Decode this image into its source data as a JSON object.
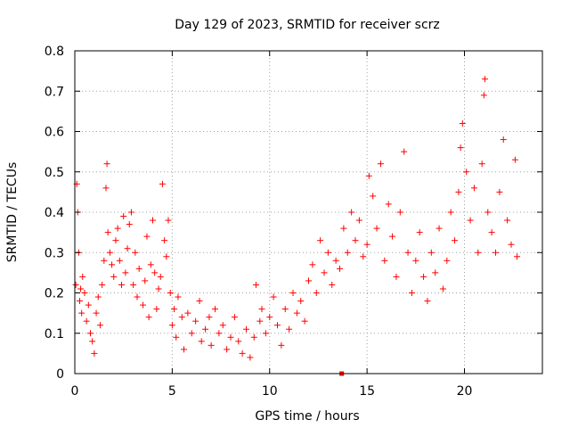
{
  "chart_data": {
    "type": "scatter",
    "title": "Day 129 of 2023, SRMTID for receiver scrz",
    "xlabel": "GPS time / hours",
    "ylabel": "SRMTID / TECUs",
    "xlim": [
      0,
      24
    ],
    "ylim": [
      0,
      0.8
    ],
    "xticks": [
      0,
      5,
      10,
      15,
      20
    ],
    "yticks": [
      0,
      0.1,
      0.2,
      0.3,
      0.4,
      0.5,
      0.6,
      0.7,
      0.8
    ],
    "x_tick_labels": [
      "0",
      "5",
      "10",
      "15",
      "20"
    ],
    "y_tick_labels": [
      "0",
      "0.1",
      "0.2",
      "0.3",
      "0.4",
      "0.5",
      "0.6",
      "0.7",
      "0.8"
    ],
    "grid": true,
    "marker": "+",
    "color": "#ff0000",
    "series": [
      {
        "name": "SRMTID",
        "points": [
          [
            0.05,
            0.22
          ],
          [
            0.1,
            0.47
          ],
          [
            0.15,
            0.4
          ],
          [
            0.2,
            0.3
          ],
          [
            0.25,
            0.18
          ],
          [
            0.3,
            0.21
          ],
          [
            0.35,
            0.15
          ],
          [
            0.4,
            0.24
          ],
          [
            0.5,
            0.2
          ],
          [
            0.6,
            0.13
          ],
          [
            0.7,
            0.17
          ],
          [
            0.8,
            0.1
          ],
          [
            0.9,
            0.08
          ],
          [
            1.0,
            0.05
          ],
          [
            1.1,
            0.15
          ],
          [
            1.2,
            0.19
          ],
          [
            1.3,
            0.12
          ],
          [
            1.4,
            0.22
          ],
          [
            1.5,
            0.28
          ],
          [
            1.6,
            0.46
          ],
          [
            1.65,
            0.52
          ],
          [
            1.7,
            0.35
          ],
          [
            1.8,
            0.3
          ],
          [
            1.9,
            0.27
          ],
          [
            2.0,
            0.24
          ],
          [
            2.1,
            0.33
          ],
          [
            2.2,
            0.36
          ],
          [
            2.3,
            0.28
          ],
          [
            2.4,
            0.22
          ],
          [
            2.5,
            0.39
          ],
          [
            2.6,
            0.25
          ],
          [
            2.7,
            0.31
          ],
          [
            2.8,
            0.37
          ],
          [
            2.9,
            0.4
          ],
          [
            3.0,
            0.22
          ],
          [
            3.1,
            0.3
          ],
          [
            3.2,
            0.19
          ],
          [
            3.3,
            0.26
          ],
          [
            3.5,
            0.17
          ],
          [
            3.6,
            0.23
          ],
          [
            3.7,
            0.34
          ],
          [
            3.8,
            0.14
          ],
          [
            3.9,
            0.27
          ],
          [
            4.0,
            0.38
          ],
          [
            4.1,
            0.25
          ],
          [
            4.2,
            0.16
          ],
          [
            4.3,
            0.21
          ],
          [
            4.4,
            0.24
          ],
          [
            4.5,
            0.47
          ],
          [
            4.6,
            0.33
          ],
          [
            4.7,
            0.29
          ],
          [
            4.8,
            0.38
          ],
          [
            4.9,
            0.2
          ],
          [
            5.0,
            0.12
          ],
          [
            5.1,
            0.16
          ],
          [
            5.2,
            0.09
          ],
          [
            5.3,
            0.19
          ],
          [
            5.5,
            0.14
          ],
          [
            5.6,
            0.06
          ],
          [
            5.8,
            0.15
          ],
          [
            6.0,
            0.1
          ],
          [
            6.2,
            0.13
          ],
          [
            6.4,
            0.18
          ],
          [
            6.5,
            0.08
          ],
          [
            6.7,
            0.11
          ],
          [
            6.9,
            0.14
          ],
          [
            7.0,
            0.07
          ],
          [
            7.2,
            0.16
          ],
          [
            7.4,
            0.1
          ],
          [
            7.6,
            0.12
          ],
          [
            7.8,
            0.06
          ],
          [
            8.0,
            0.09
          ],
          [
            8.2,
            0.14
          ],
          [
            8.4,
            0.08
          ],
          [
            8.6,
            0.05
          ],
          [
            8.8,
            0.11
          ],
          [
            9.0,
            0.04
          ],
          [
            9.2,
            0.09
          ],
          [
            9.3,
            0.22
          ],
          [
            9.5,
            0.13
          ],
          [
            9.6,
            0.16
          ],
          [
            9.8,
            0.1
          ],
          [
            10.0,
            0.14
          ],
          [
            10.2,
            0.19
          ],
          [
            10.4,
            0.12
          ],
          [
            10.6,
            0.07
          ],
          [
            10.8,
            0.16
          ],
          [
            11.0,
            0.11
          ],
          [
            11.2,
            0.2
          ],
          [
            11.4,
            0.15
          ],
          [
            11.6,
            0.18
          ],
          [
            11.8,
            0.13
          ],
          [
            12.0,
            0.23
          ],
          [
            12.2,
            0.27
          ],
          [
            12.4,
            0.2
          ],
          [
            12.6,
            0.33
          ],
          [
            12.8,
            0.25
          ],
          [
            13.0,
            0.3
          ],
          [
            13.2,
            0.22
          ],
          [
            13.4,
            0.28
          ],
          [
            13.6,
            0.26
          ],
          [
            13.8,
            0.36
          ],
          [
            14.0,
            0.3
          ],
          [
            14.2,
            0.4
          ],
          [
            14.4,
            0.33
          ],
          [
            14.6,
            0.38
          ],
          [
            14.8,
            0.29
          ],
          [
            15.0,
            0.32
          ],
          [
            15.1,
            0.49
          ],
          [
            15.3,
            0.44
          ],
          [
            15.5,
            0.36
          ],
          [
            15.7,
            0.52
          ],
          [
            15.9,
            0.28
          ],
          [
            16.1,
            0.42
          ],
          [
            16.3,
            0.34
          ],
          [
            16.5,
            0.24
          ],
          [
            16.7,
            0.4
          ],
          [
            16.9,
            0.55
          ],
          [
            17.1,
            0.3
          ],
          [
            17.3,
            0.2
          ],
          [
            17.5,
            0.28
          ],
          [
            17.7,
            0.35
          ],
          [
            17.9,
            0.24
          ],
          [
            18.1,
            0.18
          ],
          [
            18.3,
            0.3
          ],
          [
            18.5,
            0.25
          ],
          [
            18.7,
            0.36
          ],
          [
            18.9,
            0.21
          ],
          [
            19.1,
            0.28
          ],
          [
            19.3,
            0.4
          ],
          [
            19.5,
            0.33
          ],
          [
            19.7,
            0.45
          ],
          [
            19.8,
            0.56
          ],
          [
            19.9,
            0.62
          ],
          [
            20.1,
            0.5
          ],
          [
            20.3,
            0.38
          ],
          [
            20.5,
            0.46
          ],
          [
            20.7,
            0.3
          ],
          [
            20.9,
            0.52
          ],
          [
            21.0,
            0.69
          ],
          [
            21.05,
            0.73
          ],
          [
            21.2,
            0.4
          ],
          [
            21.4,
            0.35
          ],
          [
            21.6,
            0.3
          ],
          [
            21.8,
            0.45
          ],
          [
            22.0,
            0.58
          ],
          [
            22.2,
            0.38
          ],
          [
            22.4,
            0.32
          ],
          [
            22.6,
            0.53
          ],
          [
            22.7,
            0.29
          ]
        ]
      }
    ],
    "extra_marker": {
      "x": 13.7,
      "y": 0.0,
      "shape": "square"
    }
  }
}
